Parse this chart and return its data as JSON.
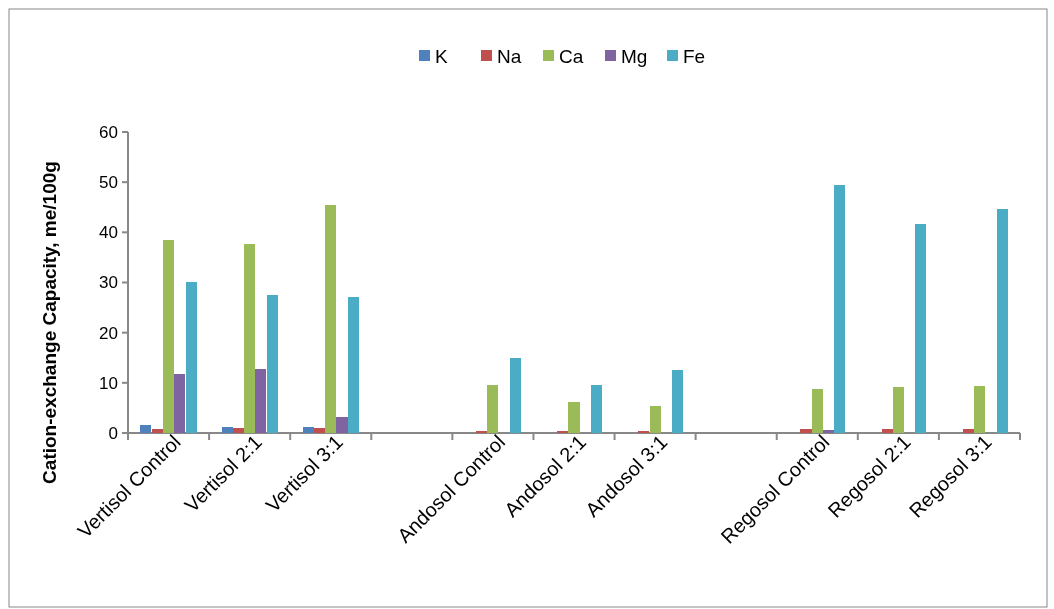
{
  "chart_data": {
    "type": "bar",
    "ylabel": "Cation-exchange Capacity, me/100g",
    "categories": [
      "Vertisol Control",
      "Vertisol 2:1",
      "Vertisol 3:1",
      null,
      "Andosol Control",
      "Andosol 2:1",
      "Andosol 3:1",
      null,
      "Regosol Control",
      "Regosol 2:1",
      "Regosol 3:1"
    ],
    "series": [
      {
        "name": "K",
        "color": "#4f81bd",
        "values": [
          1.5,
          1.2,
          1.2,
          null,
          0,
          0,
          0,
          null,
          0,
          0,
          0
        ]
      },
      {
        "name": "Na",
        "color": "#c0504d",
        "values": [
          0.7,
          1.0,
          1.0,
          null,
          0.4,
          0.4,
          0.4,
          null,
          0.7,
          0.7,
          0.7
        ]
      },
      {
        "name": "Ca",
        "color": "#9bbb59",
        "values": [
          38.4,
          37.6,
          45.4,
          null,
          9.6,
          6.1,
          5.3,
          null,
          8.8,
          9.1,
          9.3
        ]
      },
      {
        "name": "Mg",
        "color": "#8064a2",
        "values": [
          11.7,
          12.8,
          3.1,
          null,
          0,
          0,
          0,
          null,
          0.6,
          0,
          0
        ]
      },
      {
        "name": "Fe",
        "color": "#4bacc6",
        "values": [
          30.1,
          27.5,
          27.2,
          null,
          14.9,
          9.6,
          12.5,
          null,
          49.4,
          41.6,
          44.6
        ]
      }
    ],
    "ylim": [
      0,
      60
    ],
    "yticks": [
      0,
      10,
      20,
      30,
      40,
      50,
      60
    ],
    "grid": false,
    "legend": "top"
  }
}
